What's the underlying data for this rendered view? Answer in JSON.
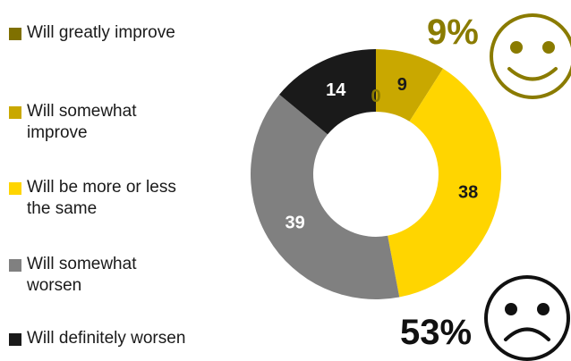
{
  "chart_data": {
    "type": "pie",
    "variant": "donut",
    "categories": [
      "Will greatly improve",
      "Will somewhat improve",
      "Will be more or less the same",
      "Will somewhat worsen",
      "Will definitely worsen"
    ],
    "values": [
      0,
      9,
      38,
      39,
      14
    ],
    "colors": [
      "#7f7000",
      "#c9a800",
      "#ffd500",
      "#808080",
      "#1a1a1a"
    ],
    "data_labels": [
      "0",
      "9",
      "38",
      "39",
      "14"
    ],
    "label_colors": [
      "#8a7b00",
      "#1a1a1a",
      "#1a1a1a",
      "#ffffff",
      "#ffffff"
    ],
    "legend_position": "left",
    "callouts": [
      {
        "text": "9%",
        "icon": "smiley-face-icon",
        "color": "#8a7b00"
      },
      {
        "text": "53%",
        "icon": "sad-face-icon",
        "color": "#111111"
      }
    ]
  },
  "legend": {
    "items": [
      {
        "lines": [
          "Will greatly improve"
        ]
      },
      {
        "lines": [
          "Will somewhat",
          "improve"
        ]
      },
      {
        "lines": [
          "Will be more or less",
          "the same"
        ]
      },
      {
        "lines": [
          "Will somewhat",
          "worsen"
        ]
      },
      {
        "lines": [
          "Will definitely worsen"
        ]
      }
    ]
  }
}
